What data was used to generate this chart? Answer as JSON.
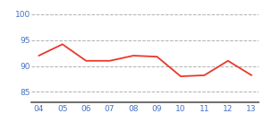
{
  "x_labels": [
    "04",
    "05",
    "06",
    "07",
    "08",
    "09",
    "10",
    "11",
    "12",
    "13"
  ],
  "x_values": [
    0,
    1,
    2,
    3,
    4,
    5,
    6,
    7,
    8,
    9
  ],
  "y_values": [
    92.0,
    94.2,
    91.0,
    91.0,
    92.0,
    91.8,
    88.0,
    88.2,
    91.0,
    88.2
  ],
  "line_color": "#e8392a",
  "line_width": 1.3,
  "ylim": [
    83,
    102
  ],
  "yticks": [
    85,
    90,
    95,
    100
  ],
  "grid_color": "#b0b0b0",
  "background_color": "#ffffff",
  "tick_color": "#4472c4",
  "tick_fontsize": 6.5,
  "spine_color": "#555555"
}
